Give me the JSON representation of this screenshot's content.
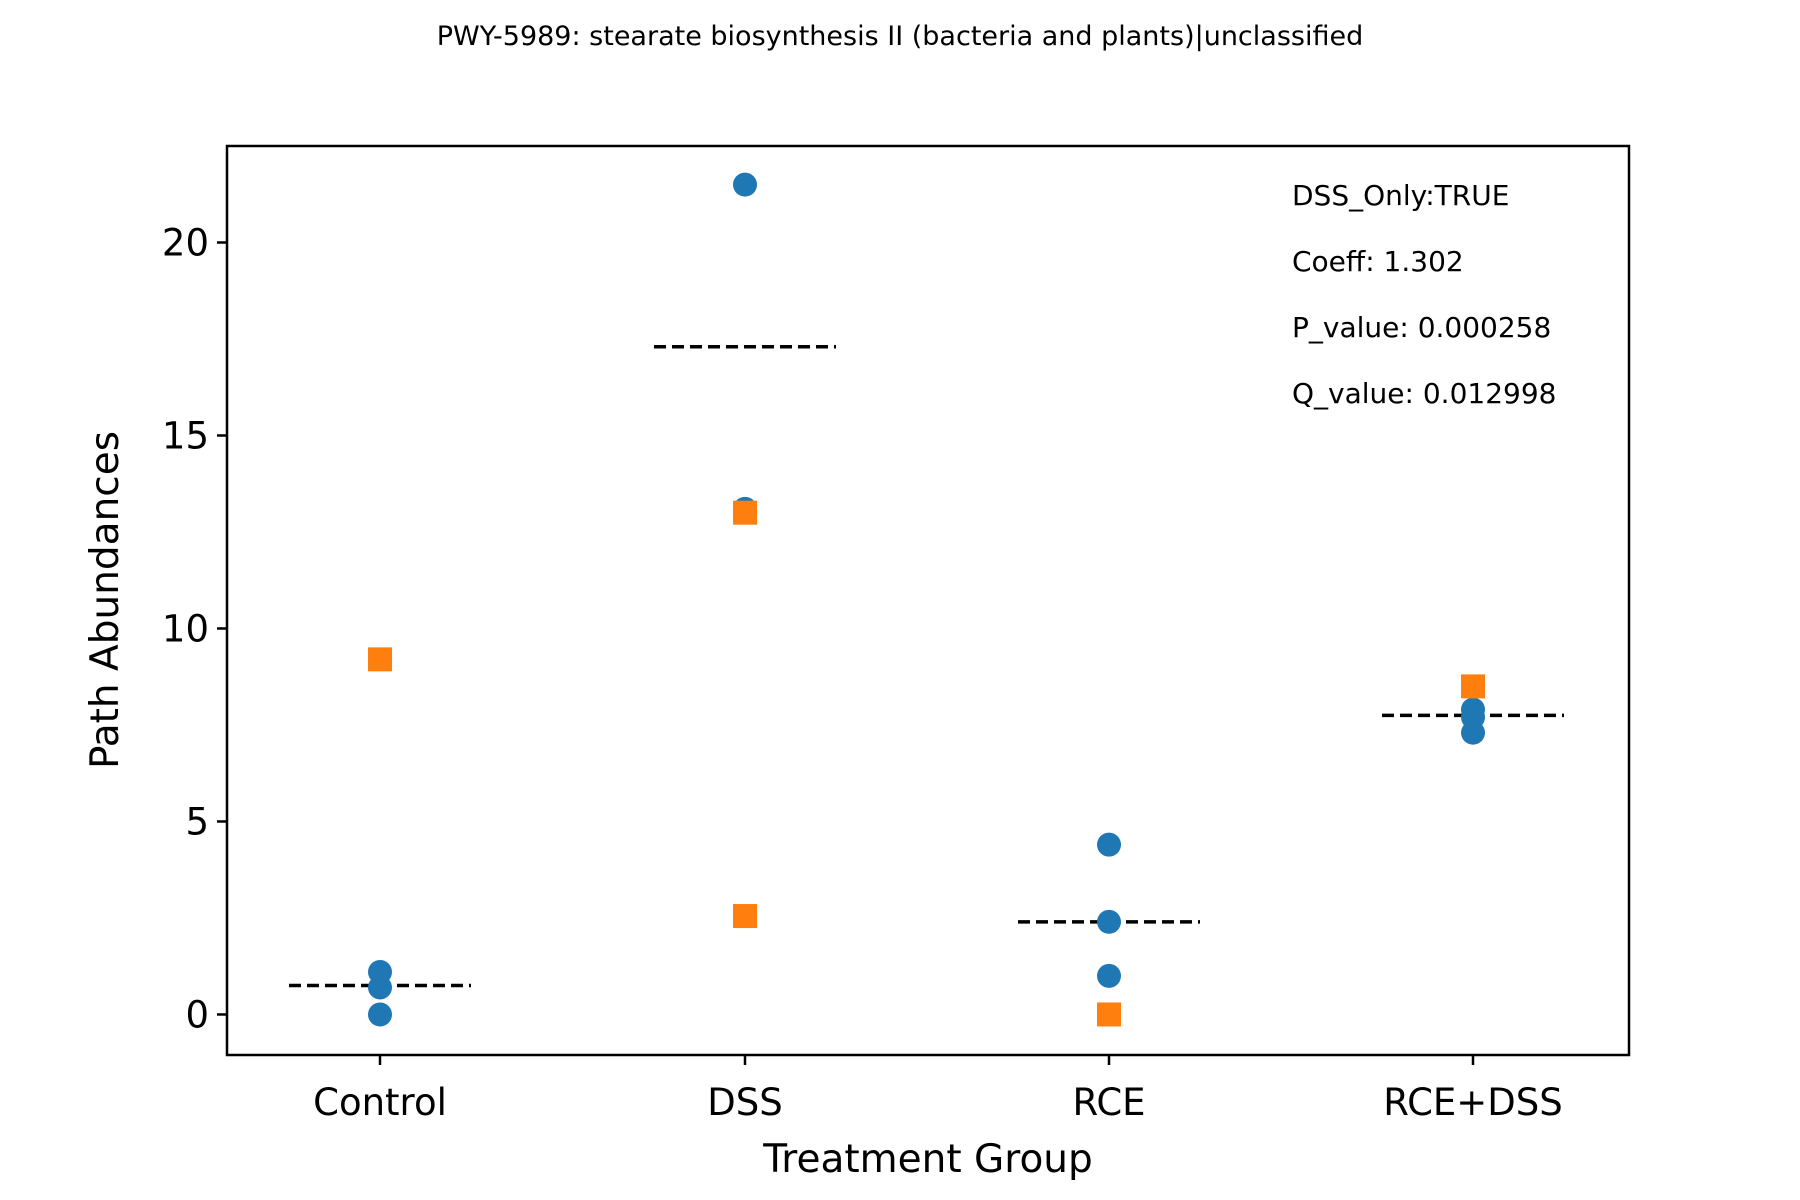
{
  "chart_data": {
    "type": "scatter",
    "title": "PWY-5989: stearate biosynthesis II (bacteria and plants)|unclassified",
    "xlabel": "Treatment Group",
    "ylabel": "Path Abundances",
    "categories": [
      "Control",
      "DSS",
      "RCE",
      "RCE+DSS"
    ],
    "ylim": [
      -1.05,
      22.5
    ],
    "yticks": [
      0,
      5,
      10,
      15,
      20
    ],
    "grid": false,
    "colors": {
      "circle": "#1f77b4",
      "square": "#ff7f0e",
      "mean_line": "#000000"
    },
    "series": [
      {
        "marker": "circle",
        "points": [
          {
            "category": "Control",
            "y": 1.1
          },
          {
            "category": "Control",
            "y": 0.7
          },
          {
            "category": "Control",
            "y": 0.0
          },
          {
            "category": "DSS",
            "y": 21.5
          },
          {
            "category": "DSS",
            "y": 13.1
          },
          {
            "category": "RCE",
            "y": 4.4
          },
          {
            "category": "RCE",
            "y": 2.4
          },
          {
            "category": "RCE",
            "y": 1.0
          },
          {
            "category": "RCE+DSS",
            "y": 7.9
          },
          {
            "category": "RCE+DSS",
            "y": 7.7
          },
          {
            "category": "RCE+DSS",
            "y": 7.3
          }
        ]
      },
      {
        "marker": "square",
        "points": [
          {
            "category": "Control",
            "y": 9.2
          },
          {
            "category": "DSS",
            "y": 13.0
          },
          {
            "category": "DSS",
            "y": 2.55
          },
          {
            "category": "RCE",
            "y": 0.0
          },
          {
            "category": "RCE+DSS",
            "y": 8.5
          }
        ]
      }
    ],
    "means": [
      {
        "category": "Control",
        "y": 0.75
      },
      {
        "category": "DSS",
        "y": 17.3
      },
      {
        "category": "RCE",
        "y": 2.4
      },
      {
        "category": "RCE+DSS",
        "y": 7.75
      }
    ],
    "annotations": [
      "DSS_Only:TRUE",
      "Coeff: 1.302",
      "P_value: 0.000258",
      "Q_value: 0.012998"
    ]
  }
}
